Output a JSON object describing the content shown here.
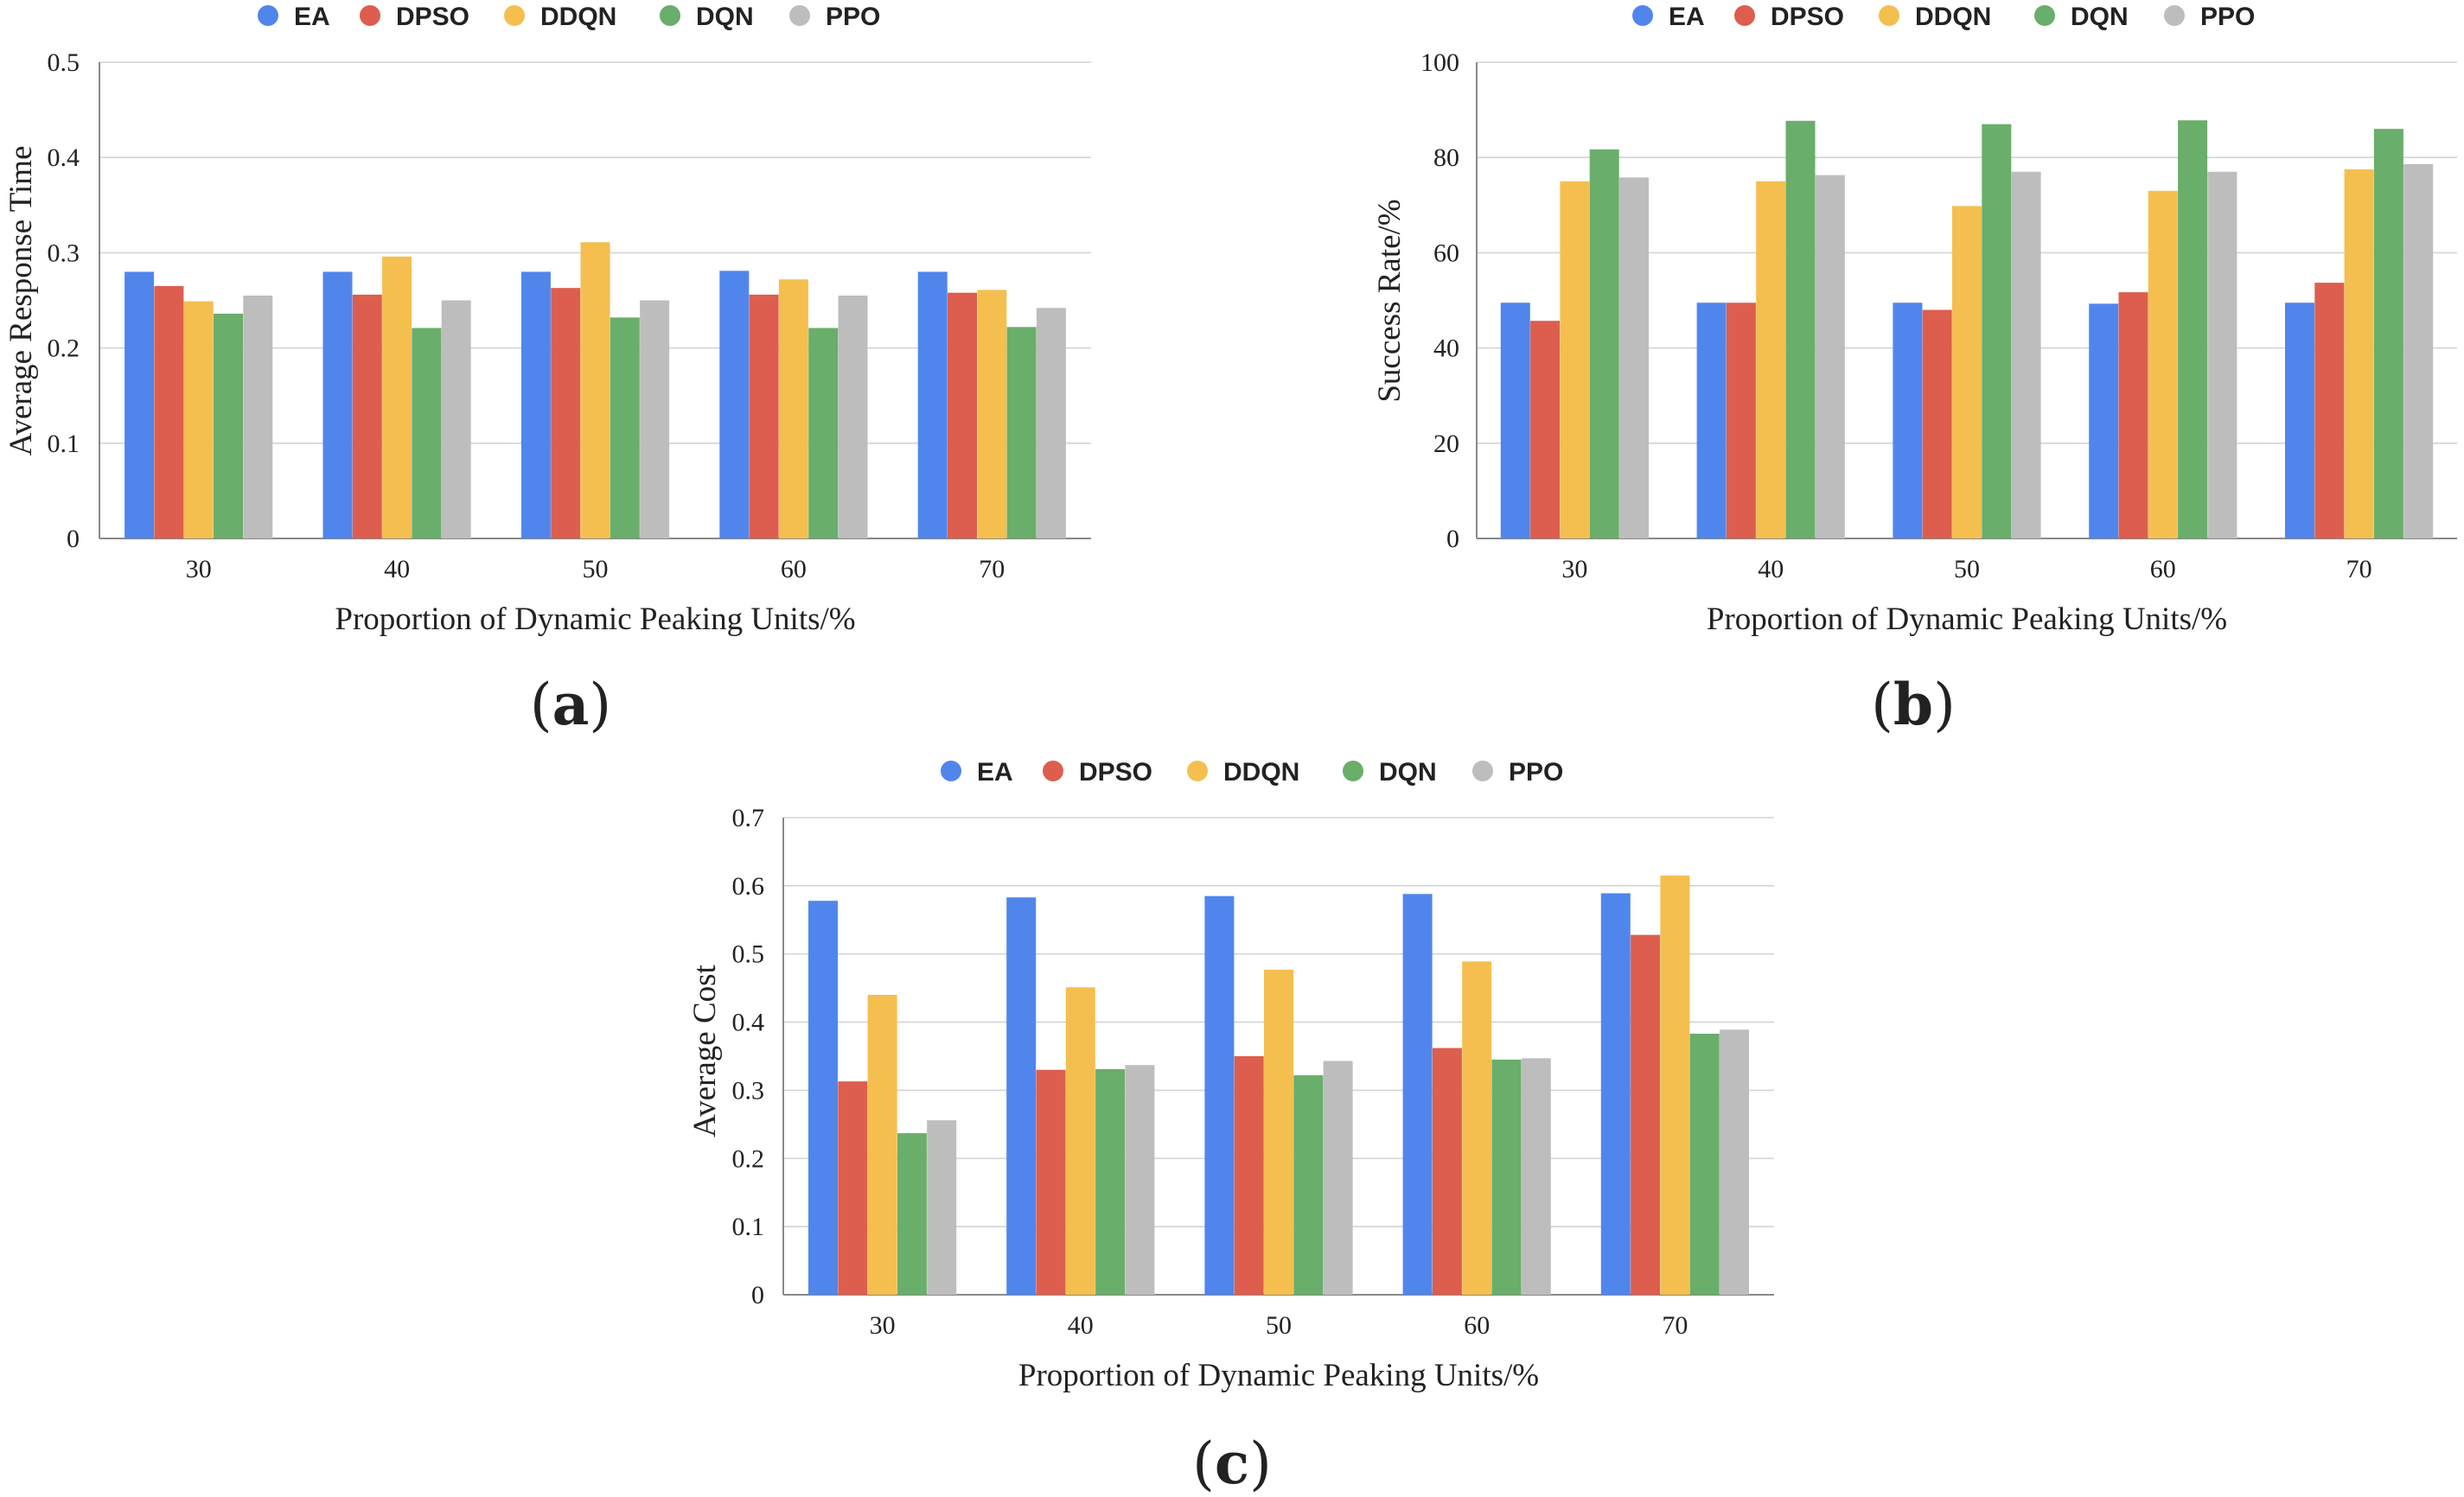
{
  "series_colors": {
    "EA": "#5086EC",
    "DPSO": "#DD5E4E",
    "DDQN": "#F4BF4F",
    "DQN": "#69AE6A",
    "PPO": "#BDBDBD"
  },
  "panel_labels": [
    "(a)",
    "(b)",
    "(c)"
  ],
  "chart_data": [
    {
      "type": "bar",
      "categories": [
        "30",
        "40",
        "50",
        "60",
        "70"
      ],
      "series": [
        {
          "name": "EA",
          "values": [
            0.28,
            0.28,
            0.28,
            0.281,
            0.28
          ]
        },
        {
          "name": "DPSO",
          "values": [
            0.265,
            0.256,
            0.263,
            0.256,
            0.258
          ]
        },
        {
          "name": "DDQN",
          "values": [
            0.249,
            0.296,
            0.311,
            0.272,
            0.261
          ]
        },
        {
          "name": "DQN",
          "values": [
            0.236,
            0.221,
            0.232,
            0.221,
            0.222
          ]
        },
        {
          "name": "PPO",
          "values": [
            0.255,
            0.25,
            0.25,
            0.255,
            0.242
          ]
        }
      ],
      "xlabel": "Proportion of Dynamic Peaking Units/%",
      "ylabel": "Average Response Time",
      "ylim": [
        0,
        0.5
      ],
      "yticks": [
        "0",
        "0.1",
        "0.2",
        "0.3",
        "0.4",
        "0.5"
      ],
      "legend": "top-center",
      "grid": true
    },
    {
      "type": "bar",
      "categories": [
        "30",
        "40",
        "50",
        "60",
        "70"
      ],
      "series": [
        {
          "name": "EA",
          "values": [
            49.5,
            49.5,
            49.5,
            49.3,
            49.5
          ]
        },
        {
          "name": "DPSO",
          "values": [
            45.7,
            49.5,
            48,
            51.7,
            53.7
          ]
        },
        {
          "name": "DDQN",
          "values": [
            75,
            75,
            69.8,
            73,
            77.5
          ]
        },
        {
          "name": "DQN",
          "values": [
            81.7,
            87.7,
            87,
            87.8,
            86
          ]
        },
        {
          "name": "PPO",
          "values": [
            75.8,
            76.3,
            77,
            77,
            78.6
          ]
        }
      ],
      "xlabel": "Proportion of Dynamic Peaking Units/%",
      "ylabel": "Success Rate/%",
      "ylim": [
        0,
        100
      ],
      "yticks": [
        "0",
        "20",
        "40",
        "60",
        "80",
        "100"
      ],
      "legend": "top-center",
      "grid": true
    },
    {
      "type": "bar",
      "categories": [
        "30",
        "40",
        "50",
        "60",
        "70"
      ],
      "series": [
        {
          "name": "EA",
          "values": [
            0.578,
            0.583,
            0.585,
            0.588,
            0.589
          ]
        },
        {
          "name": "DPSO",
          "values": [
            0.313,
            0.33,
            0.35,
            0.362,
            0.528
          ]
        },
        {
          "name": "DDQN",
          "values": [
            0.44,
            0.451,
            0.477,
            0.489,
            0.615
          ]
        },
        {
          "name": "DQN",
          "values": [
            0.237,
            0.331,
            0.322,
            0.345,
            0.383
          ]
        },
        {
          "name": "PPO",
          "values": [
            0.256,
            0.337,
            0.343,
            0.347,
            0.389
          ]
        }
      ],
      "xlabel": "Proportion of Dynamic Peaking Units/%",
      "ylabel": "Average Cost",
      "ylim": [
        0,
        0.7
      ],
      "yticks": [
        "0",
        "0.1",
        "0.2",
        "0.3",
        "0.4",
        "0.5",
        "0.6",
        "0.7"
      ],
      "legend": "top-center",
      "grid": true
    }
  ]
}
